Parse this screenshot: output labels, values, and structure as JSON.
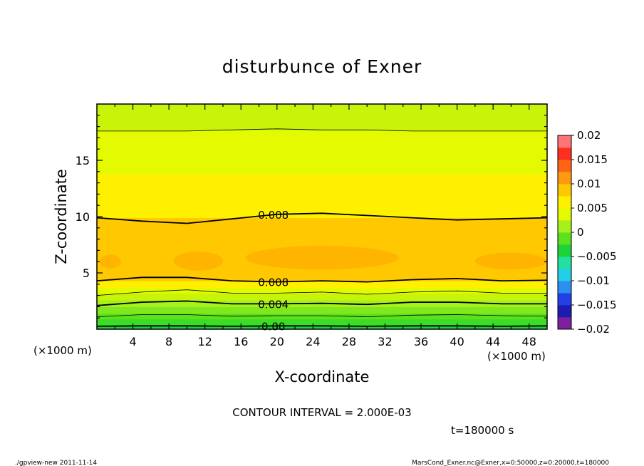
{
  "chart_data": {
    "type": "contour",
    "title": "disturbunce of Exner",
    "xlabel": "X-coordinate",
    "ylabel": "Z-coordinate",
    "x_unit": "(×1000 m)",
    "y_unit": "(×1000 m)",
    "xlim": [
      0,
      50
    ],
    "ylim": [
      0,
      20
    ],
    "x_ticks": [
      4,
      8,
      12,
      16,
      20,
      24,
      28,
      32,
      36,
      40,
      44,
      48
    ],
    "x_tick_labels": [
      "4",
      "8",
      "12",
      "16",
      "20",
      "24",
      "28",
      "32",
      "36",
      "40",
      "44",
      "48"
    ],
    "y_ticks": [
      5,
      10,
      15
    ],
    "y_tick_labels": [
      "5",
      "10",
      "15"
    ],
    "contour_interval_label": "CONTOUR INTERVAL = 2.000E-03",
    "time_label": "t=180000 s",
    "colorbar": {
      "min": -0.02,
      "max": 0.02,
      "tick_values": [
        0.02,
        0.015,
        0.01,
        0.005,
        0,
        -0.005,
        -0.01,
        -0.015,
        -0.02
      ],
      "tick_labels": [
        "0.02",
        "0.015",
        "0.01",
        "0.005",
        "0",
        "−0.005",
        "−0.01",
        "−0.015",
        "−0.02"
      ],
      "colors": [
        "#7f1f9f",
        "#1c1cb0",
        "#2340e6",
        "#2b8ff0",
        "#22d0e6",
        "#22e0a0",
        "#1ed23c",
        "#5be21c",
        "#a6f01c",
        "#e4fa00",
        "#fff000",
        "#ffc800",
        "#ff9a10",
        "#ff6414",
        "#ff2e1e",
        "#ff7474"
      ]
    },
    "filled_bands": [
      {
        "range": "z 0.0-0.3 km",
        "value_low": 0.0,
        "value_high": 0.001,
        "color": "#1ed23c"
      },
      {
        "range": "z 0.3-0.9 km",
        "value_low": 0.001,
        "value_high": 0.002,
        "color": "#3cdc28"
      },
      {
        "range": "z 0.9-1.4 km",
        "value_low": 0.002,
        "value_high": 0.003,
        "color": "#5be21c"
      },
      {
        "range": "z 1.4-2.0 km",
        "value_low": 0.003,
        "value_high": 0.004,
        "color": "#80e81c"
      },
      {
        "range": "z 2.0-2.6 km",
        "value_low": 0.004,
        "value_high": 0.005,
        "color": "#a6f01c"
      },
      {
        "range": "z 2.6-3.2 km",
        "value_low": 0.005,
        "value_high": 0.006,
        "color": "#c8f40a"
      },
      {
        "range": "z 3.2-3.7 km",
        "value_low": 0.006,
        "value_high": 0.007,
        "color": "#e4fa00"
      },
      {
        "range": "z 3.7-4.3 km",
        "value_low": 0.007,
        "value_high": 0.008,
        "color": "#fff000"
      },
      {
        "range": "z 4.3-9.9 km",
        "value_low": 0.008,
        "value_high": 0.009,
        "color": "#ffc800"
      },
      {
        "range": "z 9.9-13.8 km",
        "value_low": 0.007,
        "value_high": 0.008,
        "color": "#fff000"
      },
      {
        "range": "z 13.8-17.7 km",
        "value_low": 0.006,
        "value_high": 0.007,
        "color": "#e4fa00"
      },
      {
        "range": "z 17.7-20 km",
        "value_low": 0.005,
        "value_high": 0.006,
        "color": "#c8f40a"
      }
    ],
    "patches": [
      {
        "value_low": 0.009,
        "value_high": 0.01,
        "color": "#ffb400",
        "x_range": [
          0.3,
          2.7
        ],
        "z_range": [
          5.4,
          6.6
        ]
      },
      {
        "value_low": 0.009,
        "value_high": 0.01,
        "color": "#ffb400",
        "x_range": [
          8.5,
          14.0
        ],
        "z_range": [
          5.2,
          6.9
        ]
      },
      {
        "value_low": 0.009,
        "value_high": 0.01,
        "color": "#ffb400",
        "x_range": [
          16.5,
          33.5
        ],
        "z_range": [
          5.3,
          7.4
        ]
      },
      {
        "value_low": 0.009,
        "value_high": 0.01,
        "color": "#ffb400",
        "x_range": [
          42.0,
          50.0
        ],
        "z_range": [
          5.3,
          6.8
        ]
      }
    ],
    "contour_lines": [
      {
        "level": 0.0,
        "label": "0.00",
        "bold": true,
        "z": [
          0.26,
          0.3,
          0.3,
          0.26,
          0.3,
          0.3,
          0.26,
          0.3,
          0.3,
          0.26,
          0.3
        ]
      },
      {
        "level": 0.002,
        "label": "",
        "bold": false,
        "z": [
          1.1,
          1.3,
          1.3,
          1.15,
          1.2,
          1.2,
          1.1,
          1.25,
          1.3,
          1.2,
          1.15
        ]
      },
      {
        "level": 0.004,
        "label": "0.004",
        "bold": true,
        "z": [
          2.1,
          2.4,
          2.5,
          2.25,
          2.25,
          2.3,
          2.2,
          2.4,
          2.4,
          2.25,
          2.25
        ]
      },
      {
        "level": 0.006,
        "label": "",
        "bold": false,
        "z": [
          3.0,
          3.3,
          3.5,
          3.2,
          3.2,
          3.3,
          3.1,
          3.3,
          3.4,
          3.2,
          3.2
        ]
      },
      {
        "level": 0.008,
        "label": "0.008",
        "bold": true,
        "z": [
          4.3,
          4.6,
          4.6,
          4.3,
          4.2,
          4.3,
          4.2,
          4.4,
          4.5,
          4.3,
          4.35
        ]
      },
      {
        "level": 0.008,
        "label": "0.008",
        "bold": true,
        "z": [
          9.9,
          9.6,
          9.4,
          9.8,
          10.2,
          10.3,
          10.1,
          9.9,
          9.7,
          9.8,
          9.9
        ]
      },
      {
        "level": 0.006,
        "label": "",
        "bold": false,
        "z": [
          17.6,
          17.6,
          17.6,
          17.7,
          17.8,
          17.7,
          17.7,
          17.6,
          17.6,
          17.6,
          17.6
        ]
      }
    ]
  },
  "footer": {
    "left": "./gpview-new   2011-11-14",
    "right": "MarsCond_Exner.nc@Exner,x=0:50000,z=0:20000,t=180000"
  }
}
